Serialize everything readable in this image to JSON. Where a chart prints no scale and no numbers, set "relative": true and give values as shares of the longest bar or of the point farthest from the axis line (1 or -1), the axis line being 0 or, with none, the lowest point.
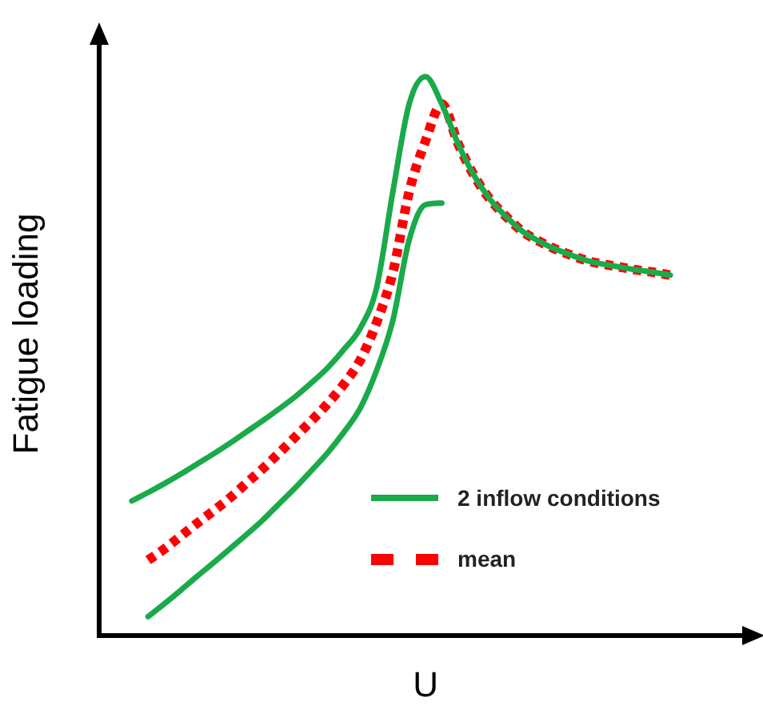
{
  "chart_data": {
    "type": "line",
    "relative": true,
    "xlabel": "U",
    "ylabel": "Fatigue loading",
    "legend": "bottom right",
    "grid": false,
    "marker": "none",
    "categories": [
      null,
      null,
      null,
      null,
      null,
      null,
      null,
      null,
      null,
      null,
      null,
      null,
      null,
      null,
      null,
      null,
      null,
      null,
      null,
      null,
      null,
      null,
      null,
      null,
      null,
      null,
      null,
      null,
      null,
      null,
      null,
      null,
      null,
      null,
      null,
      null,
      null,
      null,
      null,
      null,
      null
    ],
    "series": [
      {
        "name": "2 inflow conditions",
        "color": "#1aaa4a",
        "line_style": "solid",
        "values": [
          null,
          null,
          0.241,
          0.256,
          0.272,
          0.289,
          0.307,
          0.325,
          0.344,
          0.364,
          0.384,
          0.405,
          0.427,
          0.452,
          0.479,
          0.512,
          0.55,
          0.622,
          0.794,
          0.951,
          1,
          0.951,
          0.88,
          0.822,
          0.779,
          0.748,
          0.722,
          0.705,
          0.691,
          0.68,
          0.67,
          0.664,
          0.659,
          0.654,
          0.65,
          0.645,
          null,
          null,
          null,
          null,
          null
        ]
      },
      {
        "color": "#1aaa4a",
        "line_style": "solid",
        "values": [
          null,
          null,
          null,
          0.034,
          0.057,
          0.081,
          0.106,
          0.13,
          0.155,
          0.18,
          0.206,
          0.235,
          0.264,
          0.295,
          0.327,
          0.364,
          0.407,
          0.474,
          0.564,
          0.708,
          0.771,
          0.774,
          null,
          null,
          null,
          null,
          null,
          null,
          null,
          null,
          null,
          null,
          null,
          null,
          null,
          null,
          null,
          null,
          null,
          null,
          null
        ]
      },
      {
        "name": "mean",
        "color": "#ff0000",
        "line_style": "dotted",
        "values": [
          null,
          null,
          null,
          0.135,
          0.155,
          0.178,
          0.201,
          0.223,
          0.246,
          0.272,
          0.298,
          0.326,
          0.355,
          0.384,
          0.415,
          0.45,
          0.493,
          0.56,
          0.65,
          0.794,
          0.885,
          0.951,
          0.88,
          0.822,
          0.779,
          0.748,
          0.722,
          0.705,
          0.691,
          0.68,
          0.67,
          0.664,
          0.659,
          0.654,
          0.65,
          0.645,
          null,
          null,
          null,
          null,
          null
        ]
      }
    ]
  }
}
